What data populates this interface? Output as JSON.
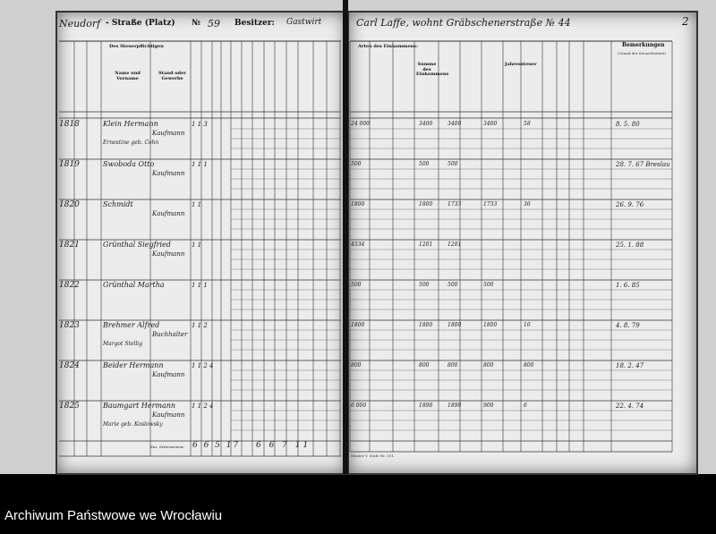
{
  "header": {
    "street_handwritten": "Neudorf",
    "street_label": "- Straße (Platz)",
    "number_label": "№",
    "number_value": "59",
    "owner_label": "Besitzer:",
    "owner_value": "Gastwirt",
    "owner_continued": "Carl Laffe, wohnt Gräbschenerstraße № 44",
    "page_number": "2"
  },
  "left_columns": {
    "group_taxpayer": "Des Steuerpflichtigen",
    "name": "Name und Vorname",
    "occupation": "Stand oder Gewerbe"
  },
  "right_columns": {
    "income_types": "Arten des Einkommens:",
    "income_sum": "Summe des Einkommens",
    "annual_tax": "Jahressteuer",
    "remarks": "Bemerkungen",
    "remarks_sub": "(Grund der Steuerfreiheit)"
  },
  "rows": [
    {
      "nr": "1818",
      "name": "Klein Hermann",
      "occupation": "Kaufmann",
      "sub": "Ernestine geb. Cohn",
      "counts": "1 1 3",
      "amounts": [
        "24 000",
        "3400",
        "3400",
        "3400",
        "58"
      ],
      "remarks": "8. 5. 80"
    },
    {
      "nr": "1819",
      "name": "Swoboda Otto",
      "occupation": "Kaufmann",
      "sub": "",
      "counts": "1 1 1",
      "amounts": [
        "500",
        "500",
        "500"
      ],
      "remarks": "28. 7. 67 Breslau"
    },
    {
      "nr": "1820",
      "name": "Schmidt",
      "occupation": "Kaufmann",
      "sub": "",
      "counts": "1 1",
      "amounts": [
        "1800",
        "1800",
        "1733",
        "1733",
        "36"
      ],
      "remarks": "26. 9. 76"
    },
    {
      "nr": "1821",
      "name": "Grünthal Siegfried",
      "occupation": "Kaufmann",
      "sub": "",
      "counts": "1 1",
      "amounts": [
        "4534",
        "1201",
        "1201"
      ],
      "remarks": "25. 1. 88"
    },
    {
      "nr": "1822",
      "name": "Grünthal Martha",
      "occupation": "",
      "sub": "",
      "counts": "1 1 1",
      "amounts": [
        "500",
        "500",
        "500",
        "500"
      ],
      "remarks": "1. 6. 85"
    },
    {
      "nr": "1823",
      "name": "Brehmer Alfred",
      "occupation": "Buchhalter",
      "sub": "Margot Stellig",
      "counts": "1 1 2",
      "amounts": [
        "1800",
        "1800",
        "1800",
        "1800",
        "16"
      ],
      "remarks": "4. 8. 79"
    },
    {
      "nr": "1824",
      "name": "Beider Hermann",
      "occupation": "Kaufmann",
      "sub": "",
      "counts": "1 1 2 4",
      "amounts": [
        "800",
        "800",
        "800",
        "800",
        "800"
      ],
      "remarks": "18. 2. 47"
    },
    {
      "nr": "1825",
      "name": "Baumgart Hermann",
      "occupation": "Kaufmann",
      "sub": "Marie geb. Koslowsky",
      "counts": "1 1 2 4",
      "amounts": [
        "6 000",
        "1898",
        "1898",
        "900",
        "6"
      ],
      "remarks": "22. 4. 74"
    }
  ],
  "totals": {
    "label": "Zus. Seitensumme",
    "values": "6 6 5 17",
    "values2": "6 6 7 11"
  },
  "form_footer": "Muster V. Stufe Nr. 151.",
  "archive_caption": "Archiwum Państwowe we Wrocławiu"
}
